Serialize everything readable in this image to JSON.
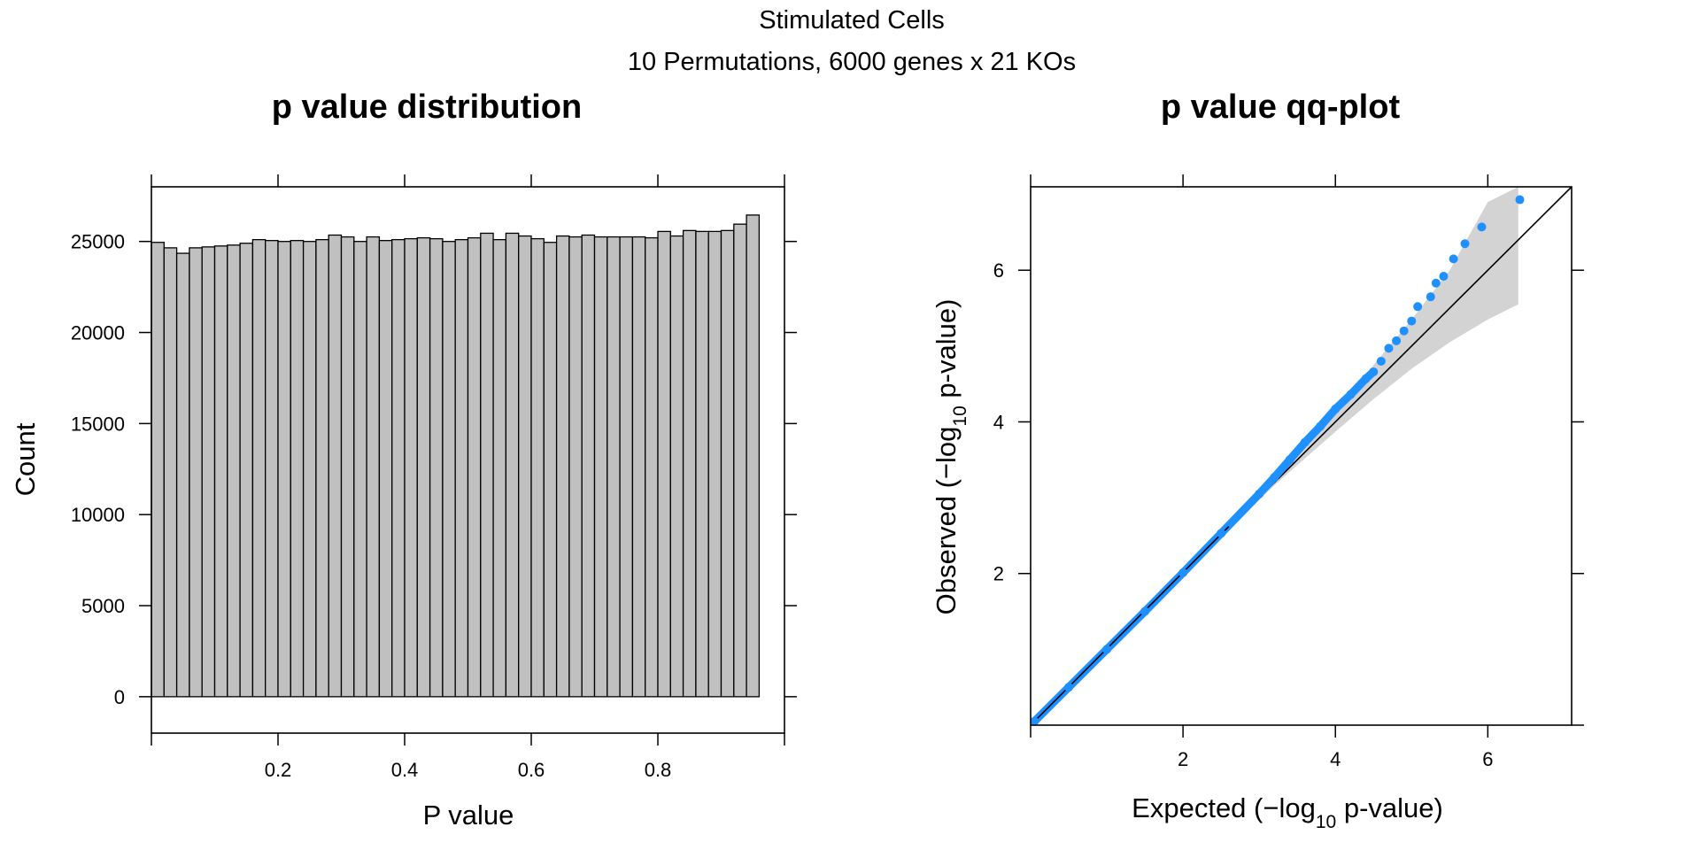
{
  "figure": {
    "title": "Stimulated Cells",
    "subtitle": "10 Permutations, 6000 genes x 21 KOs"
  },
  "chart_data": [
    {
      "type": "bar",
      "title": "p value distribution",
      "xlabel": "P value",
      "ylabel": "Count",
      "xlim": [
        0,
        1
      ],
      "ylim": [
        -2000,
        28000
      ],
      "x_ticks": [
        "0.2",
        "0.4",
        "0.6",
        "0.8"
      ],
      "y_ticks": [
        "0",
        "5000",
        "10000",
        "15000",
        "20000",
        "25000"
      ],
      "bin_width": 0.02,
      "bar_color": "#c0c0c0",
      "values": [
        24950,
        24650,
        24350,
        24650,
        24700,
        24750,
        24800,
        24900,
        25100,
        25050,
        25000,
        25050,
        25000,
        25100,
        25350,
        25250,
        25000,
        25250,
        25050,
        25100,
        25150,
        25200,
        25150,
        25000,
        25100,
        25200,
        25450,
        25100,
        25450,
        25300,
        25150,
        24950,
        25300,
        25250,
        25350,
        25250,
        25250,
        25250,
        25250,
        25200,
        25550,
        25300,
        25600,
        25550,
        25550,
        25600,
        25950,
        26450
      ]
    },
    {
      "type": "scatter",
      "title": "p value qq-plot",
      "xlabel_parts": [
        "Expected (",
        "−",
        "log",
        "10",
        " p-value)"
      ],
      "ylabel_parts": [
        "Observed (",
        "−",
        "log",
        "10",
        " p-value)"
      ],
      "xlim": [
        0,
        7.1
      ],
      "ylim": [
        0,
        7.1
      ],
      "x_ticks": [
        "2",
        "4",
        "6"
      ],
      "y_ticks": [
        "2",
        "4",
        "6"
      ],
      "point_color": "#1e90ff",
      "band_color": "#d3d3d3",
      "reference_line": [
        [
          0,
          0
        ],
        [
          7.1,
          7.1
        ]
      ],
      "confidence_band": {
        "x": [
          0,
          3.0,
          3.5,
          4.0,
          4.5,
          5.0,
          5.5,
          6.0,
          6.4
        ],
        "upper": [
          0.02,
          3.05,
          3.6,
          4.15,
          4.75,
          5.35,
          6.0,
          6.9,
          7.1
        ],
        "lower": [
          0,
          2.98,
          3.43,
          3.87,
          4.3,
          4.7,
          5.05,
          5.35,
          5.55
        ]
      },
      "points": [
        [
          0.05,
          0.05
        ],
        [
          0.5,
          0.5
        ],
        [
          1.0,
          1.0
        ],
        [
          1.5,
          1.5
        ],
        [
          2.0,
          2.01
        ],
        [
          2.5,
          2.53
        ],
        [
          3.0,
          3.05
        ],
        [
          3.2,
          3.27
        ],
        [
          3.4,
          3.5
        ],
        [
          3.6,
          3.73
        ],
        [
          3.8,
          3.94
        ],
        [
          4.0,
          4.17
        ],
        [
          4.2,
          4.36
        ],
        [
          4.4,
          4.57
        ],
        [
          4.5,
          4.66
        ],
        [
          4.6,
          4.8
        ],
        [
          4.7,
          4.97
        ],
        [
          4.8,
          5.07
        ],
        [
          4.9,
          5.2
        ],
        [
          5.0,
          5.33
        ],
        [
          5.08,
          5.52
        ],
        [
          5.25,
          5.65
        ],
        [
          5.32,
          5.83
        ],
        [
          5.42,
          5.92
        ],
        [
          5.55,
          6.15
        ],
        [
          5.7,
          6.35
        ],
        [
          5.92,
          6.57
        ],
        [
          6.42,
          6.93
        ]
      ]
    }
  ]
}
